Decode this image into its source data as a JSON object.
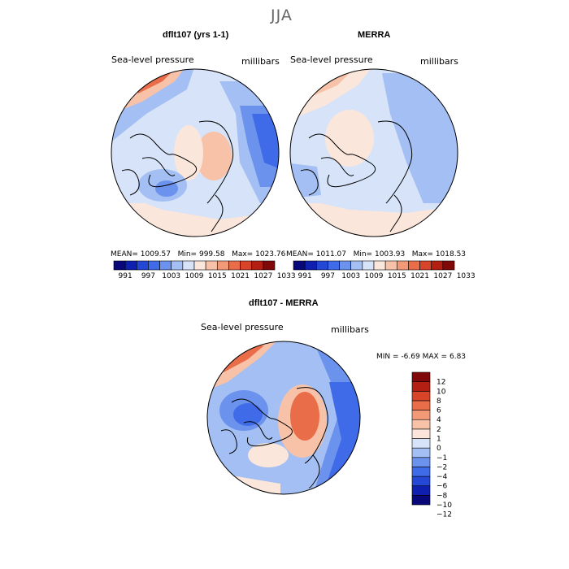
{
  "page_title": "JJA",
  "palette_abs": [
    "#08087a",
    "#0f1fb0",
    "#2447d6",
    "#3f6be8",
    "#6b93ee",
    "#a3bff3",
    "#d6e3f8",
    "#fbe6dc",
    "#f7c2a8",
    "#f29a78",
    "#ea6d4a",
    "#d7442a",
    "#b31f12",
    "#800808"
  ],
  "palette_diff": [
    "#08087a",
    "#0f1fb0",
    "#2447d6",
    "#3f6be8",
    "#6b93ee",
    "#a3bff3",
    "#d6e3f8",
    "#fde5dc",
    "#f7c2a8",
    "#f29a78",
    "#ea6d4a",
    "#d7442a",
    "#b31f12",
    "#800808"
  ],
  "chart_data": [
    {
      "type": "heatmap",
      "name": "model",
      "title": "dflt107 (yrs 1-1)",
      "field_label": "Sea-level pressure",
      "units_label": "millibars",
      "stats": {
        "mean": "1009.57",
        "min": "999.58",
        "max": "1023.76"
      },
      "colorbar_ticks": [
        "991",
        "997",
        "1003",
        "1009",
        "1015",
        "1021",
        "1027",
        "1033"
      ]
    },
    {
      "type": "heatmap",
      "name": "reanalysis",
      "title": "MERRA",
      "field_label": "Sea-level pressure",
      "units_label": "millibars",
      "stats": {
        "mean": "1011.07",
        "min": "1003.93",
        "max": "1018.53"
      },
      "colorbar_ticks": [
        "991",
        "997",
        "1003",
        "1009",
        "1015",
        "1021",
        "1027",
        "1033"
      ]
    },
    {
      "type": "heatmap",
      "name": "difference",
      "title": "dflt107 - MERRA",
      "field_label": "Sea-level pressure",
      "units_label": "millibars",
      "stats": {
        "min": "-6.69",
        "max": "6.83"
      },
      "colorbar_ticks": [
        "12",
        "10",
        "8",
        "6",
        "4",
        "2",
        "1",
        "0",
        "−1",
        "−2",
        "−4",
        "−6",
        "−8",
        "−10",
        "−12"
      ]
    }
  ],
  "labels": {
    "mean_prefix": "MEAN=",
    "min_prefix": "Min=",
    "max_prefix": "Max=",
    "diff_min_prefix": "MIN =",
    "diff_max_prefix": "MAX ="
  }
}
